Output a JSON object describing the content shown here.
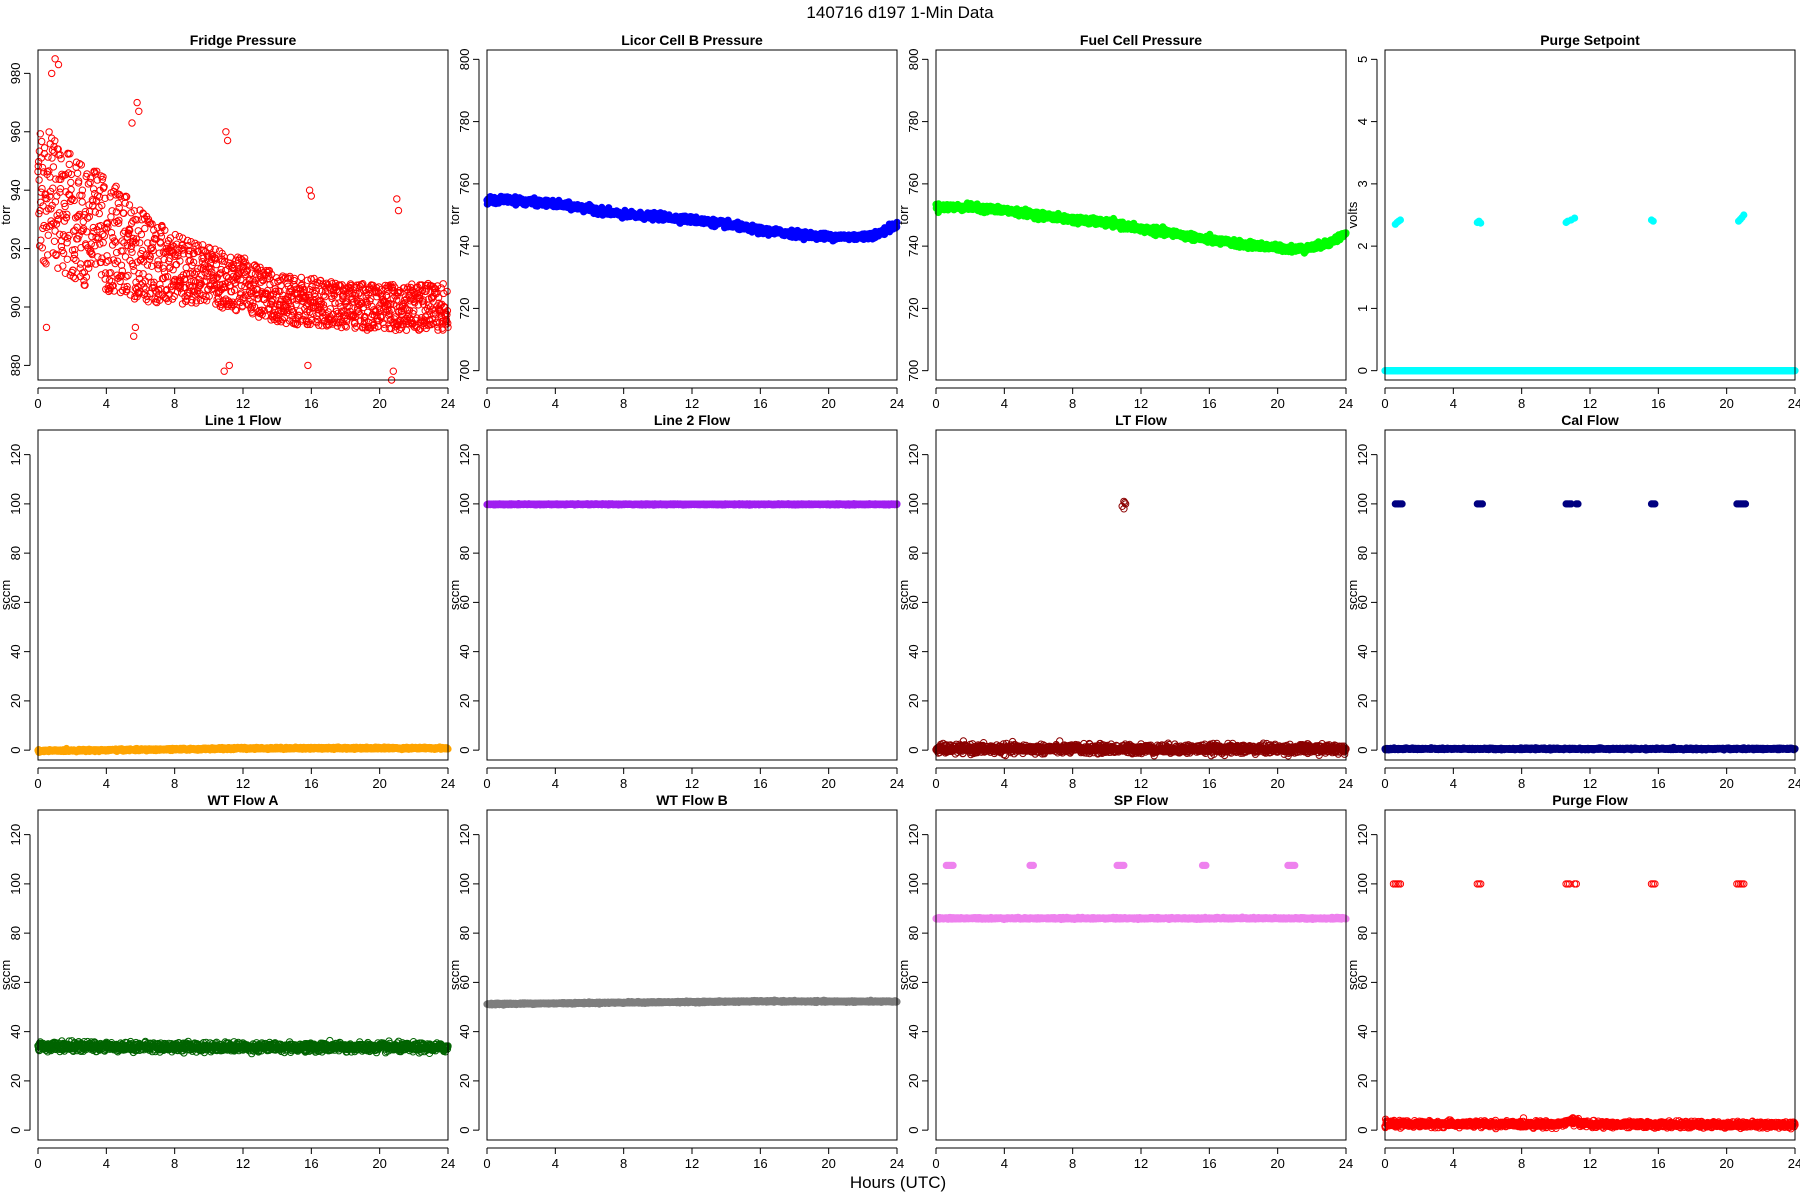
{
  "figure": {
    "title": "140716   d197   1-Min Data",
    "xlabel": "Hours (UTC)"
  },
  "chart_data": [
    {
      "type": "scatter",
      "title": "Fridge Pressure",
      "ylabel": "torr",
      "xlim": [
        0,
        24
      ],
      "ylim": [
        875,
        988
      ],
      "xticks": [
        0,
        4,
        8,
        12,
        16,
        20,
        24
      ],
      "yticks": [
        880,
        900,
        920,
        940,
        960,
        980
      ],
      "color": "#ff0000",
      "marker": "open",
      "trend": [
        [
          0,
          940
        ],
        [
          1,
          935
        ],
        [
          2,
          930
        ],
        [
          3,
          928
        ],
        [
          4,
          925
        ],
        [
          5,
          922
        ],
        [
          6,
          918
        ],
        [
          7,
          915
        ],
        [
          8,
          913
        ],
        [
          9,
          912
        ],
        [
          10,
          912
        ],
        [
          11,
          908
        ],
        [
          12,
          908
        ],
        [
          13,
          905
        ],
        [
          14,
          903
        ],
        [
          15,
          902
        ],
        [
          16,
          902
        ],
        [
          17,
          901
        ],
        [
          18,
          900
        ],
        [
          19,
          900
        ],
        [
          20,
          900
        ],
        [
          21,
          900
        ],
        [
          22,
          900
        ],
        [
          23,
          900
        ],
        [
          24,
          900
        ]
      ],
      "spread": [
        [
          0,
          24
        ],
        [
          2,
          22
        ],
        [
          4,
          20
        ],
        [
          6,
          16
        ],
        [
          8,
          12
        ],
        [
          10,
          10
        ],
        [
          12,
          9
        ],
        [
          16,
          8
        ],
        [
          24,
          8
        ]
      ],
      "spikes": [
        [
          1.0,
          985
        ],
        [
          1.2,
          983
        ],
        [
          0.8,
          980
        ],
        [
          5.8,
          970
        ],
        [
          5.9,
          967
        ],
        [
          5.5,
          963
        ],
        [
          11.0,
          960
        ],
        [
          11.1,
          957
        ],
        [
          15.9,
          940
        ],
        [
          16.0,
          938
        ],
        [
          21.0,
          937
        ],
        [
          21.1,
          933
        ],
        [
          10.9,
          878
        ],
        [
          11.2,
          880
        ],
        [
          15.8,
          880
        ],
        [
          20.7,
          875
        ],
        [
          20.8,
          878
        ],
        [
          5.6,
          890
        ],
        [
          5.7,
          893
        ],
        [
          0.5,
          893
        ]
      ]
    },
    {
      "type": "scatter",
      "title": "Licor Cell B Pressure",
      "ylabel": "torr",
      "xlim": [
        0,
        24
      ],
      "ylim": [
        697,
        803
      ],
      "xticks": [
        0,
        4,
        8,
        12,
        16,
        20,
        24
      ],
      "yticks": [
        700,
        720,
        740,
        760,
        780,
        800
      ],
      "color": "#0000ff",
      "marker": "filled",
      "trend": [
        [
          0,
          754.5
        ],
        [
          1,
          755
        ],
        [
          2,
          754.5
        ],
        [
          4,
          753.5
        ],
        [
          6,
          752
        ],
        [
          8,
          750
        ],
        [
          10,
          749.5
        ],
        [
          12,
          748.5
        ],
        [
          14,
          747
        ],
        [
          16,
          745
        ],
        [
          18,
          744
        ],
        [
          20,
          743
        ],
        [
          21,
          743
        ],
        [
          22,
          743
        ],
        [
          23,
          744
        ],
        [
          24,
          747
        ]
      ],
      "spread": [
        [
          0,
          1
        ],
        [
          24,
          1
        ]
      ],
      "spikes": []
    },
    {
      "type": "scatter",
      "title": "Fuel Cell Pressure",
      "ylabel": "torr",
      "xlim": [
        0,
        24
      ],
      "ylim": [
        697,
        803
      ],
      "xticks": [
        0,
        4,
        8,
        12,
        16,
        20,
        24
      ],
      "yticks": [
        700,
        720,
        740,
        760,
        780,
        800
      ],
      "color": "#00ff00",
      "marker": "filled",
      "trend": [
        [
          0,
          752.5
        ],
        [
          2,
          752.5
        ],
        [
          4,
          751.5
        ],
        [
          6,
          750
        ],
        [
          8,
          748.5
        ],
        [
          10,
          747.5
        ],
        [
          12,
          745.5
        ],
        [
          14,
          744
        ],
        [
          16,
          742
        ],
        [
          18,
          740.5
        ],
        [
          20,
          739.5
        ],
        [
          21,
          739
        ],
        [
          22,
          739.5
        ],
        [
          23,
          741
        ],
        [
          24,
          744
        ]
      ],
      "spread": [
        [
          0,
          1
        ],
        [
          24,
          1
        ]
      ],
      "spikes": []
    },
    {
      "type": "scatter",
      "title": "Purge Setpoint",
      "ylabel": "volts",
      "xlim": [
        0,
        24
      ],
      "ylim": [
        -0.15,
        5.15
      ],
      "xticks": [
        0,
        4,
        8,
        12,
        16,
        20,
        24
      ],
      "yticks": [
        0,
        1,
        2,
        3,
        4,
        5
      ],
      "color": "#00ffff",
      "marker": "filled",
      "trend": [
        [
          0,
          0
        ],
        [
          24,
          0
        ]
      ],
      "spread": [
        [
          0,
          0
        ],
        [
          24,
          0
        ]
      ],
      "spikes": [
        [
          0.6,
          2.35
        ],
        [
          0.7,
          2.38
        ],
        [
          0.8,
          2.4
        ],
        [
          0.9,
          2.42
        ],
        [
          5.4,
          2.38
        ],
        [
          5.5,
          2.4
        ],
        [
          5.6,
          2.37
        ],
        [
          10.6,
          2.38
        ],
        [
          10.7,
          2.4
        ],
        [
          10.9,
          2.42
        ],
        [
          11.1,
          2.45
        ],
        [
          15.6,
          2.42
        ],
        [
          15.7,
          2.4
        ],
        [
          20.7,
          2.4
        ],
        [
          20.8,
          2.43
        ],
        [
          20.9,
          2.46
        ],
        [
          21.0,
          2.5
        ]
      ]
    },
    {
      "type": "scatter",
      "title": "Line 1 Flow",
      "ylabel": "sccm",
      "xlim": [
        0,
        24
      ],
      "ylim": [
        -4,
        130
      ],
      "xticks": [
        0,
        4,
        8,
        12,
        16,
        20,
        24
      ],
      "yticks": [
        0,
        20,
        40,
        60,
        80,
        100,
        120
      ],
      "color": "#ffa500",
      "marker": "filled",
      "trend": [
        [
          0,
          -0.3
        ],
        [
          4,
          0
        ],
        [
          8,
          0.3
        ],
        [
          12,
          0.7
        ],
        [
          16,
          0.8
        ],
        [
          24,
          0.8
        ]
      ],
      "spread": [
        [
          0,
          0.4
        ],
        [
          24,
          0.4
        ]
      ],
      "spikes": []
    },
    {
      "type": "scatter",
      "title": "Line 2 Flow",
      "ylabel": "sccm",
      "xlim": [
        0,
        24
      ],
      "ylim": [
        -4,
        130
      ],
      "xticks": [
        0,
        4,
        8,
        12,
        16,
        20,
        24
      ],
      "yticks": [
        0,
        20,
        40,
        60,
        80,
        100,
        120
      ],
      "color": "#a020f0",
      "marker": "filled",
      "trend": [
        [
          0,
          99.8
        ],
        [
          24,
          99.8
        ]
      ],
      "spread": [
        [
          0,
          0.2
        ],
        [
          24,
          0.2
        ]
      ],
      "spikes": []
    },
    {
      "type": "scatter",
      "title": "LT Flow",
      "ylabel": "sccm",
      "xlim": [
        0,
        24
      ],
      "ylim": [
        -4,
        130
      ],
      "xticks": [
        0,
        4,
        8,
        12,
        16,
        20,
        24
      ],
      "yticks": [
        0,
        20,
        40,
        60,
        80,
        100,
        120
      ],
      "color": "#8b0000",
      "marker": "open",
      "trend": [
        [
          0,
          0.5
        ],
        [
          24,
          0.5
        ]
      ],
      "spread": [
        [
          0,
          1.8
        ],
        [
          24,
          1.8
        ]
      ],
      "spikes": [
        [
          10.9,
          99
        ],
        [
          11.0,
          101
        ],
        [
          11.1,
          100
        ],
        [
          11.0,
          98
        ],
        [
          11.05,
          100.5
        ]
      ]
    },
    {
      "type": "scatter",
      "title": "Cal Flow",
      "ylabel": "sccm",
      "xlim": [
        0,
        24
      ],
      "ylim": [
        -4,
        130
      ],
      "xticks": [
        0,
        4,
        8,
        12,
        16,
        20,
        24
      ],
      "yticks": [
        0,
        20,
        40,
        60,
        80,
        100,
        120
      ],
      "color": "#000080",
      "marker": "filled",
      "trend": [
        [
          0,
          0.5
        ],
        [
          24,
          0.5
        ]
      ],
      "spread": [
        [
          0,
          0.3
        ],
        [
          24,
          0.3
        ]
      ],
      "spikes": [
        [
          0.6,
          100
        ],
        [
          0.7,
          100
        ],
        [
          0.8,
          100
        ],
        [
          0.9,
          100
        ],
        [
          1.0,
          100
        ],
        [
          5.4,
          100
        ],
        [
          5.5,
          100
        ],
        [
          5.6,
          100
        ],
        [
          5.7,
          100
        ],
        [
          10.6,
          100
        ],
        [
          10.7,
          100
        ],
        [
          10.8,
          100
        ],
        [
          10.9,
          100
        ],
        [
          11.2,
          100
        ],
        [
          11.3,
          100
        ],
        [
          15.6,
          100
        ],
        [
          15.7,
          100
        ],
        [
          15.8,
          100
        ],
        [
          20.6,
          100
        ],
        [
          20.7,
          100
        ],
        [
          20.8,
          100
        ],
        [
          20.9,
          100
        ],
        [
          21.0,
          100
        ],
        [
          21.1,
          100
        ]
      ]
    },
    {
      "type": "scatter",
      "title": "WT Flow A",
      "ylabel": "sccm",
      "xlim": [
        0,
        24
      ],
      "ylim": [
        -4,
        130
      ],
      "xticks": [
        0,
        4,
        8,
        12,
        16,
        20,
        24
      ],
      "yticks": [
        0,
        20,
        40,
        60,
        80,
        100,
        120
      ],
      "color": "#006400",
      "marker": "open",
      "trend": [
        [
          0,
          34
        ],
        [
          24,
          33.5
        ]
      ],
      "spread": [
        [
          0,
          1.8
        ],
        [
          24,
          1.8
        ]
      ],
      "spikes": []
    },
    {
      "type": "scatter",
      "title": "WT Flow B",
      "ylabel": "sccm",
      "xlim": [
        0,
        24
      ],
      "ylim": [
        -4,
        130
      ],
      "xticks": [
        0,
        4,
        8,
        12,
        16,
        20,
        24
      ],
      "yticks": [
        0,
        20,
        40,
        60,
        80,
        100,
        120
      ],
      "color": "#7f7f7f",
      "marker": "filled",
      "trend": [
        [
          0,
          51.2
        ],
        [
          8,
          51.8
        ],
        [
          16,
          52.3
        ],
        [
          24,
          52.2
        ]
      ],
      "spread": [
        [
          0,
          0.3
        ],
        [
          24,
          0.3
        ]
      ],
      "spikes": []
    },
    {
      "type": "scatter",
      "title": "SP Flow",
      "ylabel": "sccm",
      "xlim": [
        0,
        24
      ],
      "ylim": [
        -4,
        130
      ],
      "xticks": [
        0,
        4,
        8,
        12,
        16,
        20,
        24
      ],
      "yticks": [
        0,
        20,
        40,
        60,
        80,
        100,
        120
      ],
      "color": "#ee82ee",
      "marker": "filled",
      "trend": [
        [
          0,
          86
        ],
        [
          24,
          86
        ]
      ],
      "spread": [
        [
          0,
          0.3
        ],
        [
          24,
          0.3
        ]
      ],
      "spikes": [
        [
          0.6,
          107.5
        ],
        [
          0.7,
          107.5
        ],
        [
          0.8,
          107.5
        ],
        [
          0.9,
          107.5
        ],
        [
          1.0,
          107.5
        ],
        [
          5.5,
          107.5
        ],
        [
          5.6,
          107.5
        ],
        [
          5.7,
          107.5
        ],
        [
          10.6,
          107.5
        ],
        [
          10.7,
          107.5
        ],
        [
          10.8,
          107.5
        ],
        [
          10.9,
          107.5
        ],
        [
          11.0,
          107.5
        ],
        [
          15.6,
          107.5
        ],
        [
          15.7,
          107.5
        ],
        [
          15.8,
          107.5
        ],
        [
          20.6,
          107.5
        ],
        [
          20.7,
          107.5
        ],
        [
          20.8,
          107.5
        ],
        [
          20.9,
          107.5
        ],
        [
          21.0,
          107.5
        ]
      ]
    },
    {
      "type": "scatter",
      "title": "Purge Flow",
      "ylabel": "sccm",
      "xlim": [
        0,
        24
      ],
      "ylim": [
        -4,
        130
      ],
      "xticks": [
        0,
        4,
        8,
        12,
        16,
        20,
        24
      ],
      "yticks": [
        0,
        20,
        40,
        60,
        80,
        100,
        120
      ],
      "color": "#ff0000",
      "marker": "open",
      "trend": [
        [
          0,
          2.5
        ],
        [
          10,
          2.4
        ],
        [
          11,
          3.5
        ],
        [
          12,
          2.3
        ],
        [
          24,
          2.2
        ]
      ],
      "spread": [
        [
          0,
          1.2
        ],
        [
          24,
          1.2
        ]
      ],
      "spikes": [
        [
          0.5,
          100
        ],
        [
          0.6,
          100
        ],
        [
          0.7,
          100
        ],
        [
          0.8,
          100
        ],
        [
          0.9,
          100
        ],
        [
          5.4,
          100
        ],
        [
          5.5,
          100
        ],
        [
          5.6,
          100
        ],
        [
          10.6,
          100
        ],
        [
          10.7,
          100
        ],
        [
          10.8,
          100
        ],
        [
          11.1,
          100
        ],
        [
          11.2,
          100
        ],
        [
          15.6,
          100
        ],
        [
          15.7,
          100
        ],
        [
          15.8,
          100
        ],
        [
          20.6,
          100
        ],
        [
          20.7,
          100
        ],
        [
          20.8,
          100
        ],
        [
          20.9,
          100
        ],
        [
          21.0,
          100
        ],
        [
          10.9,
          4.5
        ],
        [
          11.0,
          5
        ]
      ]
    }
  ]
}
